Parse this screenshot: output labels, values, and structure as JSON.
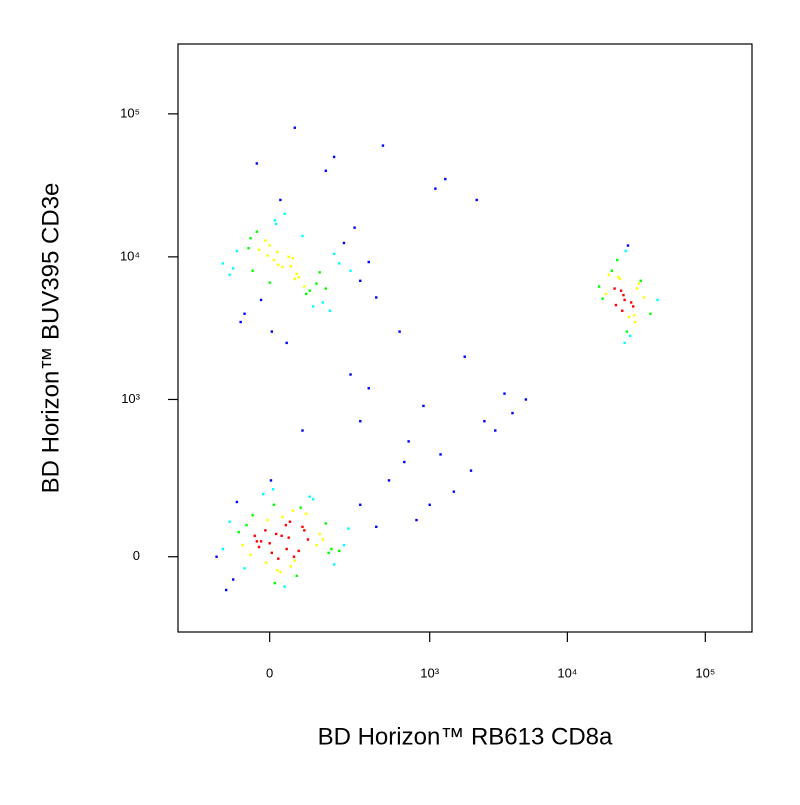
{
  "chart_data": {
    "type": "scatter",
    "x_label": "BD Horizon™ RB613 CD8a",
    "y_label": "BD Horizon™ BUV395 CD3e",
    "xscale": "biexponential",
    "yscale": "biexponential",
    "xlim": [
      -306,
      218000
    ],
    "ylim": [
      -245,
      308000
    ],
    "xticks": [
      0,
      {
        "value": 1000,
        "label": "10³"
      },
      {
        "value": 10000,
        "label": "10⁴"
      },
      {
        "value": 100000,
        "label": "10⁵"
      }
    ],
    "yticks": [
      0,
      {
        "value": 1000,
        "label": "10³"
      },
      {
        "value": 10000,
        "label": "10⁴"
      },
      {
        "value": 100000,
        "label": "10⁵"
      }
    ],
    "colormap": [
      "#0000ff",
      "#00ffff",
      "#00ff00",
      "#ffff00",
      "#ff0000"
    ],
    "x": [
      -20,
      15,
      40,
      -60,
      80,
      5,
      -35,
      120,
      -90,
      30,
      60,
      -10,
      10,
      -45,
      95,
      150,
      -120,
      25,
      0,
      55,
      -75,
      35,
      70,
      -5,
      180,
      -25,
      110,
      45,
      -140,
      20,
      90,
      -55,
      65,
      -15,
      130,
      200,
      8,
      -30,
      50,
      240,
      -100,
      75,
      12,
      -65,
      160,
      28,
      -8,
      100,
      38,
      -40,
      220,
      18,
      140,
      -80,
      58,
      -110,
      85,
      3,
      170,
      48,
      -40,
      10,
      60,
      -80,
      120,
      0,
      30,
      -20,
      200,
      80,
      -100,
      45,
      150,
      -60,
      15,
      250,
      90,
      -10,
      5,
      180,
      -120,
      70,
      35,
      300,
      -50,
      110,
      20,
      -30,
      400,
      55,
      130,
      -70,
      25,
      85,
      -5,
      220,
      40,
      -90,
      165,
      12,
      65,
      -25,
      100,
      350,
      0,
      -45,
      140,
      50,
      18,
      270,
      26000,
      22000,
      30000,
      24000,
      28000,
      19000,
      33000,
      25000,
      21000,
      27000,
      36000,
      23000,
      29000,
      17000,
      31000,
      26500,
      24500,
      40000,
      20000,
      28500,
      25500,
      34000,
      22500,
      27500,
      18000,
      30500,
      23500,
      45000,
      26000,
      32000,
      300,
      500,
      800,
      1200,
      2000,
      3000,
      400,
      650,
      1500,
      2500,
      700,
      1000,
      350,
      900,
      1800,
      4000,
      600,
      250,
      5000,
      150,
      450,
      2200,
      1100,
      60,
      -30,
      180,
      3500,
      300,
      80,
      1300
    ],
    "values": [
      40,
      60,
      20,
      -30,
      80,
      10,
      55,
      30,
      -60,
      110,
      -10,
      70,
      150,
      5,
      45,
      90,
      20,
      -40,
      35,
      130,
      65,
      -80,
      15,
      100,
      -20,
      25,
      170,
      50,
      0,
      -5,
      120,
      85,
      -50,
      190,
      60,
      15,
      210,
      40,
      -25,
      75,
      95,
      140,
      -70,
      30,
      10,
      55,
      -15,
      180,
      85,
      115,
      30,
      -35,
      45,
      160,
      0,
      -90,
      70,
      250,
      20,
      95,
      8000,
      9500,
      7000,
      11000,
      6500,
      12000,
      8500,
      5000,
      9000,
      14000,
      7500,
      10000,
      6000,
      4000,
      17000,
      8000,
      5500,
      13000,
      3000,
      10500,
      9000,
      7200,
      20000,
      6800,
      11500,
      4500,
      8800,
      15000,
      5200,
      9800,
      7800,
      3500,
      25000,
      6200,
      10200,
      12500,
      2500,
      8300,
      4200,
      18000,
      7600,
      11200,
      5800,
      9200,
      6600,
      13500,
      4800,
      8600,
      10800,
      16000,
      5000,
      6000,
      4500,
      7000,
      3800,
      5500,
      6500,
      4200,
      8000,
      3000,
      5200,
      9500,
      4800,
      6200,
      3500,
      11000,
      5800,
      4000,
      7500,
      2800,
      5400,
      6800,
      4600,
      12000,
      5100,
      3900,
      7200,
      5000,
      2500,
      6000,
      150,
      250,
      100,
      400,
      300,
      600,
      80,
      350,
      200,
      700,
      500,
      150,
      1200,
      900,
      2000,
      800,
      3000,
      1500,
      1000,
      40000,
      60000,
      25000,
      30000,
      80000,
      45000,
      50000,
      1100,
      700,
      600,
      35000
    ]
  }
}
